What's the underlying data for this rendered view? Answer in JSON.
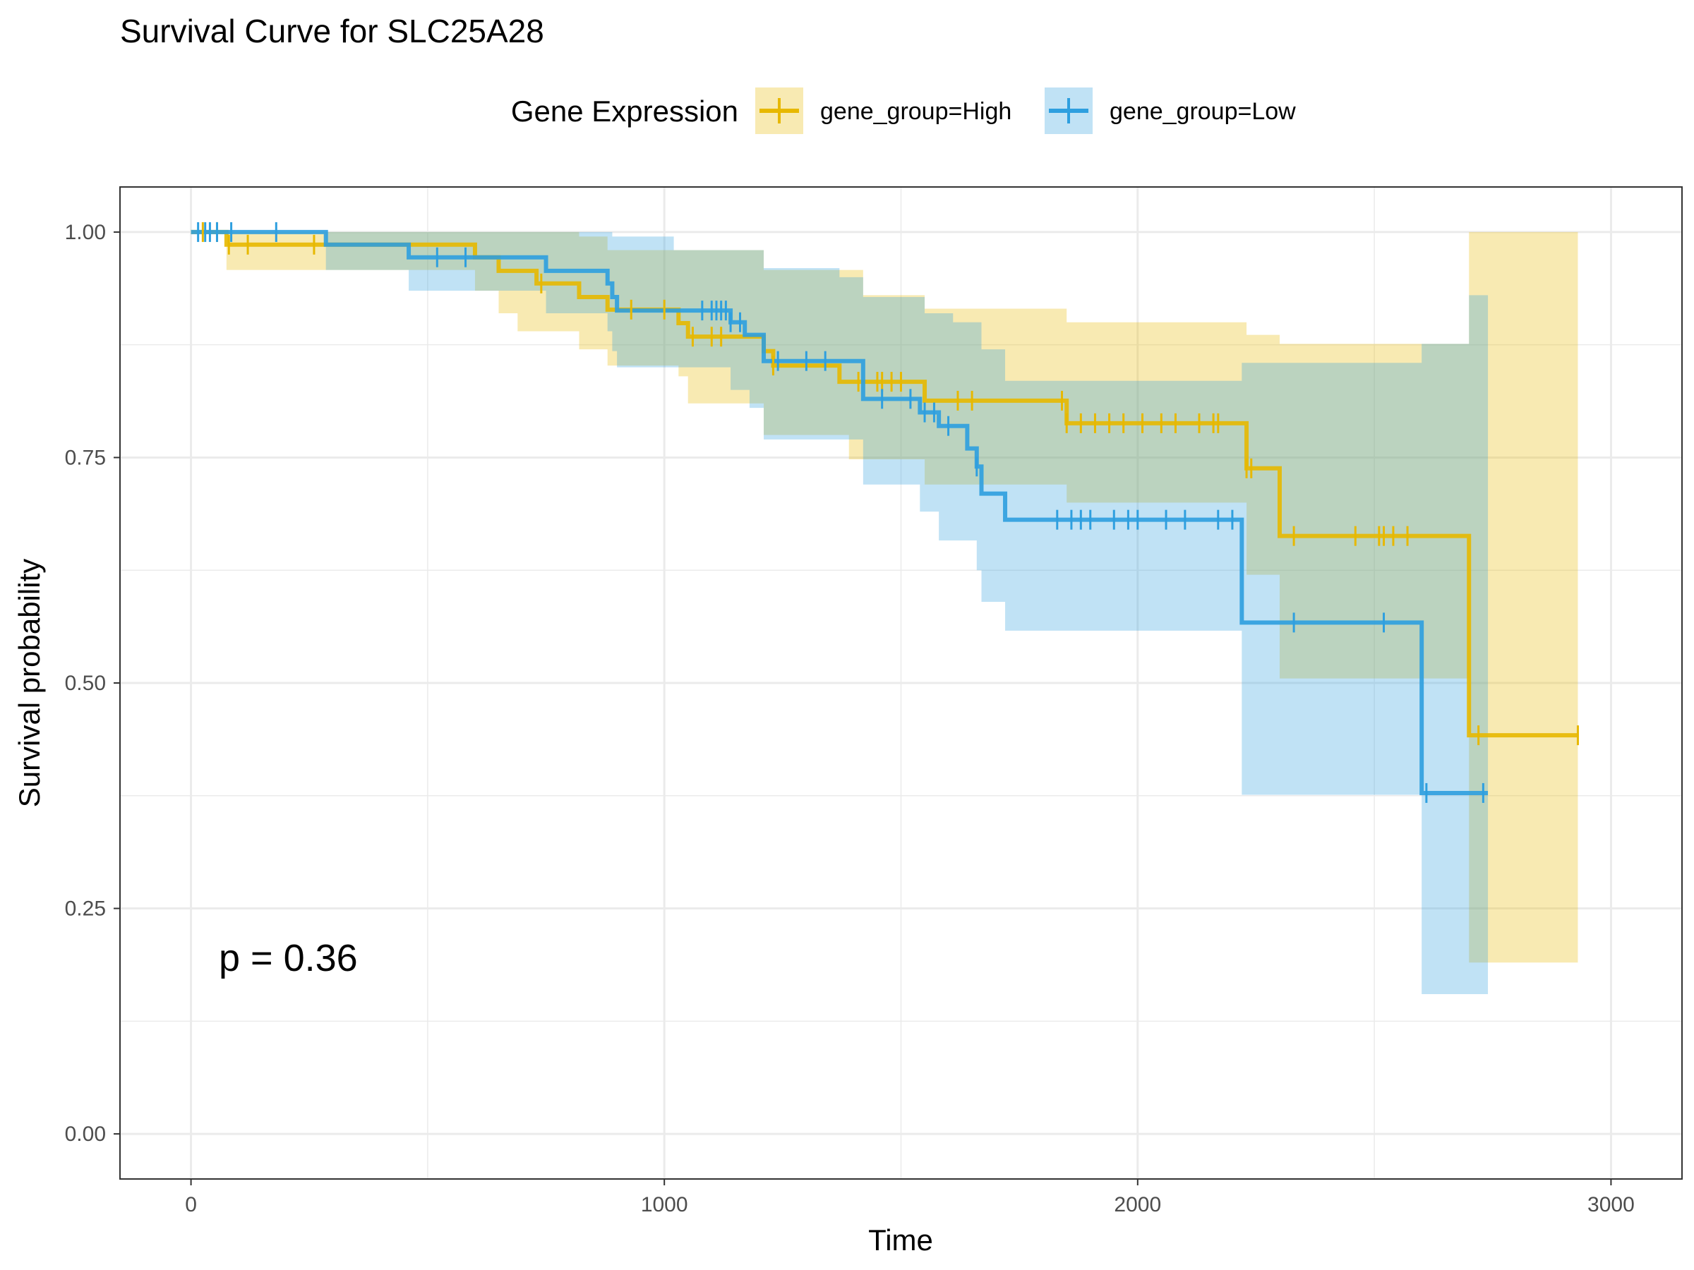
{
  "chart_data": {
    "type": "line",
    "subtype": "kaplan-meier survival step curve with confidence bands and censor marks",
    "title": "Survival Curve for SLC25A28",
    "xlabel": "Time",
    "ylabel": "Survival probability",
    "xlim": [
      -150,
      3150
    ],
    "ylim": [
      -0.05,
      1.05
    ],
    "x_ticks": [
      0,
      1000,
      2000,
      3000
    ],
    "y_ticks": [
      0,
      0.25,
      0.5,
      0.75,
      1.0
    ],
    "y_tick_labels": [
      "0.00",
      "0.25",
      "0.50",
      "0.75",
      "1.00"
    ],
    "grid": true,
    "legend": {
      "title": "Gene Expression",
      "position": "top",
      "entries": [
        "gene_group=High",
        "gene_group=Low"
      ]
    },
    "annotation": "p = 0.36",
    "series": [
      {
        "name": "gene_group=High",
        "color": "#E7B800",
        "steps": [
          [
            0,
            1.0
          ],
          [
            75,
            0.986
          ],
          [
            600,
            0.972
          ],
          [
            650,
            0.957
          ],
          [
            730,
            0.943
          ],
          [
            820,
            0.928
          ],
          [
            880,
            0.914
          ],
          [
            1030,
            0.899
          ],
          [
            1050,
            0.884
          ],
          [
            1210,
            0.868
          ],
          [
            1230,
            0.852
          ],
          [
            1370,
            0.834
          ],
          [
            1550,
            0.813
          ],
          [
            1850,
            0.788
          ],
          [
            2230,
            0.738
          ],
          [
            2300,
            0.663
          ],
          [
            2700,
            0.442
          ],
          [
            2930,
            0.442
          ]
        ],
        "ci_upper": [
          [
            0,
            1.0
          ],
          [
            75,
            1.0
          ],
          [
            660,
            1.0
          ],
          [
            820,
            0.995
          ],
          [
            880,
            0.98
          ],
          [
            1210,
            0.958
          ],
          [
            1420,
            0.93
          ],
          [
            1550,
            0.915
          ],
          [
            1850,
            0.9
          ],
          [
            2230,
            0.886
          ],
          [
            2300,
            0.876
          ],
          [
            2700,
            1.0
          ],
          [
            2930,
            1.0
          ]
        ],
        "ci_lower": [
          [
            0,
            1.0
          ],
          [
            75,
            0.958
          ],
          [
            600,
            0.935
          ],
          [
            650,
            0.91
          ],
          [
            690,
            0.89
          ],
          [
            820,
            0.87
          ],
          [
            880,
            0.852
          ],
          [
            1030,
            0.84
          ],
          [
            1050,
            0.81
          ],
          [
            1210,
            0.775
          ],
          [
            1390,
            0.748
          ],
          [
            1550,
            0.72
          ],
          [
            1850,
            0.7
          ],
          [
            2230,
            0.62
          ],
          [
            2300,
            0.505
          ],
          [
            2700,
            0.19
          ],
          [
            2930,
            0.19
          ]
        ],
        "censor_times": [
          25,
          55,
          80,
          120,
          260,
          740,
          930,
          1000,
          1060,
          1100,
          1120,
          1230,
          1410,
          1450,
          1460,
          1480,
          1500,
          1620,
          1650,
          1840,
          1850,
          1880,
          1910,
          1940,
          1970,
          2010,
          2050,
          2080,
          2130,
          2160,
          2170,
          2230,
          2240,
          2330,
          2460,
          2510,
          2520,
          2540,
          2570,
          2720,
          2930
        ]
      },
      {
        "name": "gene_group=Low",
        "color": "#2E9FDF",
        "steps": [
          [
            0,
            1.0
          ],
          [
            285,
            0.986
          ],
          [
            460,
            0.972
          ],
          [
            750,
            0.957
          ],
          [
            880,
            0.943
          ],
          [
            890,
            0.928
          ],
          [
            900,
            0.913
          ],
          [
            1140,
            0.9
          ],
          [
            1170,
            0.886
          ],
          [
            1210,
            0.857
          ],
          [
            1420,
            0.815
          ],
          [
            1540,
            0.8
          ],
          [
            1580,
            0.785
          ],
          [
            1640,
            0.76
          ],
          [
            1660,
            0.74
          ],
          [
            1670,
            0.71
          ],
          [
            1720,
            0.681
          ],
          [
            2220,
            0.567
          ],
          [
            2600,
            0.378
          ],
          [
            2740,
            0.378
          ]
        ],
        "ci_upper": [
          [
            0,
            1.0
          ],
          [
            820,
            1.0
          ],
          [
            890,
            0.995
          ],
          [
            1020,
            0.98
          ],
          [
            1210,
            0.96
          ],
          [
            1370,
            0.95
          ],
          [
            1420,
            0.928
          ],
          [
            1550,
            0.91
          ],
          [
            1610,
            0.9
          ],
          [
            1670,
            0.87
          ],
          [
            1720,
            0.835
          ],
          [
            2220,
            0.855
          ],
          [
            2600,
            0.876
          ],
          [
            2700,
            0.93
          ],
          [
            2740,
            0.93
          ]
        ],
        "ci_lower": [
          [
            0,
            1.0
          ],
          [
            285,
            0.958
          ],
          [
            460,
            0.935
          ],
          [
            750,
            0.91
          ],
          [
            880,
            0.89
          ],
          [
            890,
            0.868
          ],
          [
            900,
            0.85
          ],
          [
            1140,
            0.825
          ],
          [
            1180,
            0.805
          ],
          [
            1210,
            0.77
          ],
          [
            1420,
            0.72
          ],
          [
            1540,
            0.69
          ],
          [
            1580,
            0.658
          ],
          [
            1660,
            0.625
          ],
          [
            1670,
            0.59
          ],
          [
            1720,
            0.558
          ],
          [
            2220,
            0.376
          ],
          [
            2600,
            0.155
          ],
          [
            2740,
            0.155
          ]
        ],
        "censor_times": [
          15,
          30,
          40,
          55,
          85,
          180,
          520,
          580,
          1080,
          1100,
          1110,
          1120,
          1130,
          1140,
          1160,
          1240,
          1300,
          1340,
          1460,
          1520,
          1550,
          1570,
          1600,
          1660,
          1830,
          1860,
          1880,
          1900,
          1950,
          1980,
          2000,
          2060,
          2100,
          2170,
          2200,
          2330,
          2520,
          2610,
          2730
        ]
      }
    ]
  }
}
